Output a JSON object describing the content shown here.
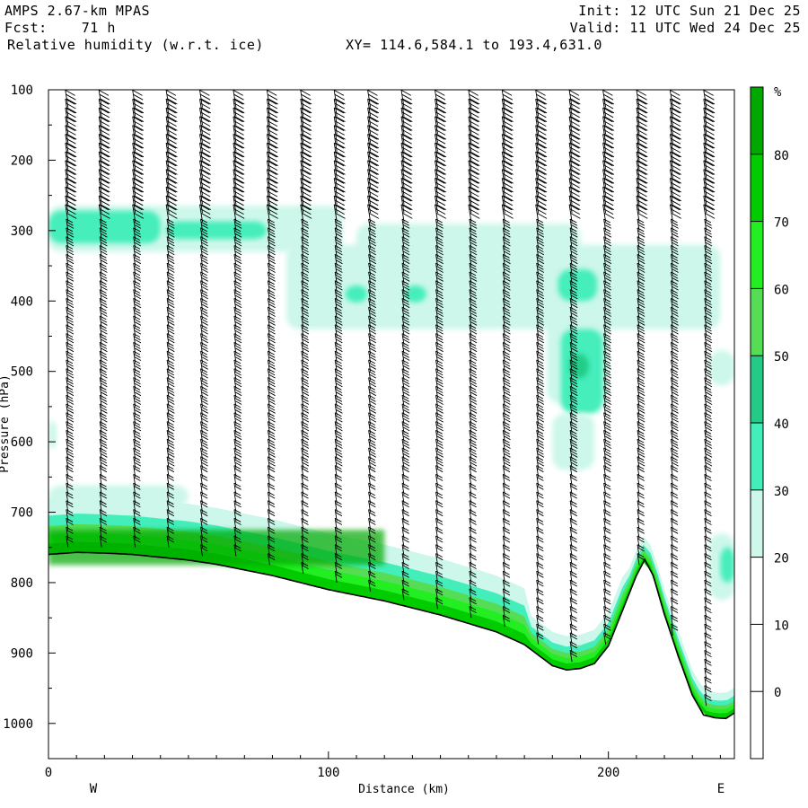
{
  "header": {
    "model": "AMPS 2.67-km MPAS",
    "init": "Init: 12 UTC Sun 21 Dec 25",
    "fcst": "Fcst:    71 h",
    "valid": "Valid: 11 UTC Wed 24 Dec 25",
    "field": "Relative humidity (w.r.t. ice)",
    "xy": "XY= 114.6,584.1 to 193.4,631.0"
  },
  "chart_data": {
    "type": "heatmap",
    "title": "Relative humidity (w.r.t. ice)",
    "xlabel": "Distance (km)",
    "ylabel": "Pressure (hPa)",
    "xlim": [
      0,
      245
    ],
    "ylim": [
      100,
      1050
    ],
    "y_scale": "linear, inverted",
    "x_ticks": [
      "0",
      "100",
      "200"
    ],
    "y_ticks": [
      "100",
      "200",
      "300",
      "400",
      "500",
      "600",
      "700",
      "800",
      "900",
      "1000"
    ],
    "left_endpoint_label": "W",
    "right_endpoint_label": "E",
    "colorbar": {
      "unit": "%",
      "levels": [
        "80",
        "70",
        "60",
        "50",
        "40",
        "30",
        "20",
        "10",
        "0"
      ],
      "colors": [
        "#00a800",
        "#00cc00",
        "#22ee22",
        "#55dd55",
        "#22cc88",
        "#44eebb",
        "#ccf7ea",
        "#ffffff",
        "#ffffff",
        "#ffffff"
      ]
    },
    "terrain_surface": {
      "x_km": [
        0,
        10,
        20,
        30,
        40,
        50,
        60,
        70,
        80,
        90,
        100,
        110,
        120,
        130,
        140,
        150,
        160,
        170,
        175,
        180,
        185,
        190,
        195,
        200,
        205,
        210,
        213,
        216,
        220,
        225,
        230,
        234,
        238,
        242,
        245
      ],
      "p_hpa": [
        760,
        757,
        758,
        760,
        764,
        768,
        774,
        782,
        790,
        800,
        810,
        818,
        826,
        836,
        846,
        858,
        870,
        888,
        903,
        918,
        924,
        922,
        915,
        890,
        840,
        790,
        767,
        790,
        845,
        905,
        960,
        988,
        992,
        993,
        985
      ]
    },
    "rh_features": [
      {
        "band": "surface moist layer",
        "x_km": [
          0,
          225
        ],
        "p_hpa": [
          700,
          790
        ],
        "rh_range": "30-80%"
      },
      {
        "band": "upper moist layer",
        "x_km": [
          0,
          100
        ],
        "p_hpa": [
          265,
          330
        ],
        "rh_range": "30-40%"
      },
      {
        "band": "mid-level moist layer",
        "x_km": [
          85,
          240
        ],
        "p_hpa": [
          290,
          440
        ],
        "rh_range": "30-40%"
      },
      {
        "band": "moist column",
        "x_km": [
          180,
          200
        ],
        "p_hpa": [
          290,
          560
        ],
        "rh_range": "30-50%"
      },
      {
        "band": "low-level patch",
        "x_km": [
          0,
          50
        ],
        "p_hpa": [
          665,
          690
        ],
        "rh_range": "30-40%"
      },
      {
        "band": "east edge patch",
        "x_km": [
          235,
          245
        ],
        "p_hpa": [
          730,
          820
        ],
        "rh_range": "30-50%"
      }
    ],
    "wind_barb_columns_km": [
      7,
      19,
      31,
      43,
      55,
      67,
      79,
      91,
      103,
      115,
      127,
      139,
      151,
      163,
      175,
      187,
      199,
      211,
      223,
      235
    ]
  }
}
